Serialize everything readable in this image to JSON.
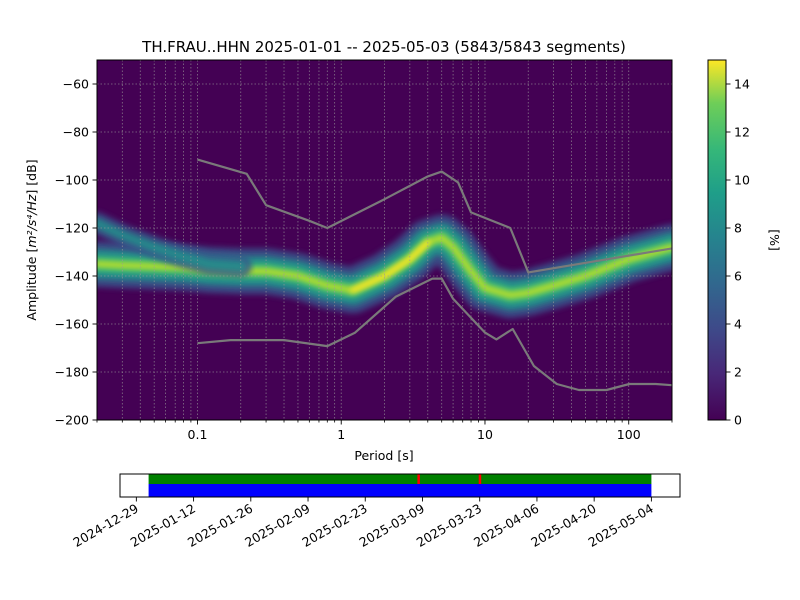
{
  "chart_data": [
    {
      "type": "heatmap",
      "title": "TH.FRAU..HHN   2025-01-01 -- 2025-05-03  (5843/5843 segments)",
      "xlabel": "Period [s]",
      "ylabel_prefix": "Amplitude [",
      "ylabel_math": "m²/s⁴/Hz",
      "ylabel_suffix": "] [dB]",
      "x_scale": "log",
      "xlim": [
        0.02,
        200
      ],
      "ylim": [
        -200,
        -50
      ],
      "x_ticks": [
        0.1,
        1,
        10,
        100
      ],
      "x_tick_labels": [
        "0.1",
        "1",
        "10",
        "100"
      ],
      "y_ticks": [
        -60,
        -80,
        -100,
        -120,
        -140,
        -160,
        -180,
        -200
      ],
      "y_tick_labels": [
        "−60",
        "−80",
        "−100",
        "−120",
        "−140",
        "−160",
        "−180",
        "−200"
      ],
      "grid": true,
      "colormap": "viridis",
      "colorbar": {
        "label": "[%]",
        "range": [
          0,
          15
        ],
        "ticks": [
          0,
          2,
          4,
          6,
          8,
          10,
          12,
          14
        ],
        "tick_labels": [
          "0",
          "2",
          "4",
          "6",
          "8",
          "10",
          "12",
          "14"
        ]
      },
      "psd_mode": {
        "period": [
          0.02,
          0.03,
          0.05,
          0.08,
          0.12,
          0.2,
          0.3,
          0.5,
          0.8,
          1.2,
          2,
          3,
          4,
          5,
          6,
          8,
          10,
          15,
          20,
          30,
          50,
          100,
          200
        ],
        "db": [
          -135,
          -135.5,
          -136,
          -136.5,
          -137.5,
          -138,
          -138,
          -140,
          -144,
          -146,
          -140,
          -133,
          -126,
          -124,
          -128,
          -138,
          -145,
          -148,
          -147,
          -144,
          -140,
          -133,
          -128
        ]
      },
      "secondary_mode": {
        "period": [
          0.02,
          0.03,
          0.05,
          0.08,
          0.12,
          0.2
        ],
        "db": [
          -118,
          -123,
          -128,
          -132,
          -135,
          -136
        ]
      },
      "noise_models": [
        {
          "period": [
            0.1,
            0.22,
            0.3,
            0.6,
            0.8,
            2,
            4,
            5,
            6.5,
            8,
            15,
            20,
            200
          ],
          "db": [
            -91.5,
            -97.4,
            -110.5,
            -117,
            -120,
            -108,
            -98.5,
            -96.5,
            -101,
            -113.5,
            -120,
            -138.5,
            -128.5
          ]
        },
        {
          "period": [
            0.1,
            0.17,
            0.4,
            0.8,
            1.24,
            2.4,
            4.3,
            5,
            6,
            10,
            12,
            15.6,
            21.9,
            31.6,
            45,
            70,
            101,
            154,
            200
          ],
          "db": [
            -168,
            -166.7,
            -166.7,
            -169.2,
            -163.7,
            -148.6,
            -141.1,
            -141.1,
            -149.5,
            -163.6,
            -166.4,
            -162.1,
            -177.5,
            -185,
            -187.5,
            -187.5,
            -185,
            -185,
            -185.5
          ]
        }
      ]
    },
    {
      "type": "timeline",
      "x_tick_labels": [
        "2024-12-29",
        "2025-01-12",
        "2025-01-26",
        "2025-02-09",
        "2025-02-23",
        "2025-03-09",
        "2025-03-23",
        "2025-04-06",
        "2025-04-20",
        "2025-05-04"
      ],
      "data_span": [
        "2025-01-01",
        "2025-05-03"
      ],
      "x_range": [
        "2024-12-25",
        "2025-05-11"
      ],
      "marker_dates": [
        "2025-03-08",
        "2025-03-23"
      ],
      "colors": {
        "green": "#008000",
        "blue": "#0000ff",
        "marker": "#ff0000"
      }
    }
  ]
}
